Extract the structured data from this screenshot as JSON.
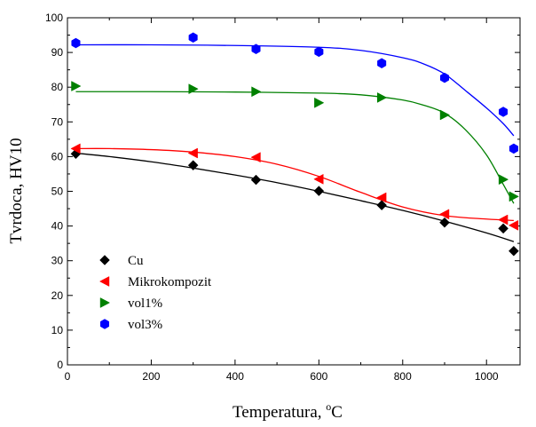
{
  "chart_data": {
    "type": "scatter",
    "title": "",
    "xlabel_main": "Temperatura, ",
    "xlabel_sup": "o",
    "xlabel_unit": "C",
    "ylabel": "Tvrdoca, HV10",
    "xlim": [
      0,
      1080
    ],
    "ylim": [
      0,
      100
    ],
    "x_ticks": [
      0,
      200,
      400,
      600,
      800,
      1000
    ],
    "y_ticks": [
      0,
      10,
      20,
      30,
      40,
      50,
      60,
      70,
      80,
      90,
      100
    ],
    "legend_position": "lower-left",
    "grid": false,
    "series": [
      {
        "name": "Cu",
        "marker": "diamond",
        "color": "#000000",
        "points": [
          [
            20,
            60.8
          ],
          [
            300,
            57.5
          ],
          [
            450,
            53.3
          ],
          [
            600,
            50.1
          ],
          [
            750,
            46.0
          ],
          [
            900,
            41.0
          ],
          [
            1040,
            39.3
          ],
          [
            1065,
            32.8
          ]
        ],
        "fit": [
          [
            20,
            61.0
          ],
          [
            100,
            60.0
          ],
          [
            200,
            58.5
          ],
          [
            300,
            56.7
          ],
          [
            400,
            54.7
          ],
          [
            500,
            52.5
          ],
          [
            600,
            50.0
          ],
          [
            700,
            47.3
          ],
          [
            800,
            44.5
          ],
          [
            900,
            41.4
          ],
          [
            1000,
            38.0
          ],
          [
            1065,
            35.5
          ]
        ]
      },
      {
        "name": "Mikrokompozit",
        "marker": "triangle-left",
        "color": "#ff0000",
        "points": [
          [
            20,
            62.3
          ],
          [
            300,
            61.0
          ],
          [
            450,
            59.8
          ],
          [
            600,
            53.5
          ],
          [
            750,
            48.2
          ],
          [
            900,
            43.4
          ],
          [
            1040,
            41.8
          ],
          [
            1065,
            40.2
          ]
        ],
        "fit": [
          [
            20,
            62.3
          ],
          [
            100,
            62.3
          ],
          [
            200,
            62.0
          ],
          [
            300,
            61.3
          ],
          [
            400,
            60.0
          ],
          [
            500,
            57.8
          ],
          [
            600,
            54.3
          ],
          [
            700,
            49.7
          ],
          [
            800,
            45.5
          ],
          [
            900,
            43.0
          ],
          [
            1000,
            42.0
          ],
          [
            1065,
            41.6
          ]
        ]
      },
      {
        "name": "vol1%",
        "marker": "triangle-right",
        "color": "#008000",
        "points": [
          [
            20,
            80.3
          ],
          [
            300,
            79.5
          ],
          [
            450,
            78.7
          ],
          [
            600,
            75.5
          ],
          [
            750,
            77.0
          ],
          [
            900,
            72.0
          ],
          [
            1040,
            53.4
          ],
          [
            1065,
            48.5
          ]
        ],
        "fit": [
          [
            20,
            78.7
          ],
          [
            200,
            78.7
          ],
          [
            400,
            78.6
          ],
          [
            600,
            78.3
          ],
          [
            700,
            77.8
          ],
          [
            800,
            76.3
          ],
          [
            850,
            74.8
          ],
          [
            900,
            72.5
          ],
          [
            950,
            67.7
          ],
          [
            1000,
            60.5
          ],
          [
            1040,
            52.0
          ],
          [
            1065,
            46.5
          ]
        ]
      },
      {
        "name": "vol3%",
        "marker": "hexagon",
        "color": "#0000ff",
        "points": [
          [
            20,
            92.7
          ],
          [
            300,
            94.3
          ],
          [
            450,
            91.0
          ],
          [
            600,
            90.2
          ],
          [
            750,
            86.9
          ],
          [
            900,
            82.7
          ],
          [
            1040,
            72.9
          ],
          [
            1065,
            62.3
          ]
        ],
        "fit": [
          [
            20,
            92.2
          ],
          [
            200,
            92.2
          ],
          [
            400,
            92.0
          ],
          [
            600,
            91.5
          ],
          [
            700,
            90.6
          ],
          [
            800,
            88.5
          ],
          [
            850,
            86.7
          ],
          [
            900,
            83.8
          ],
          [
            950,
            79.0
          ],
          [
            1000,
            74.0
          ],
          [
            1040,
            69.5
          ],
          [
            1065,
            66.0
          ]
        ]
      }
    ]
  }
}
